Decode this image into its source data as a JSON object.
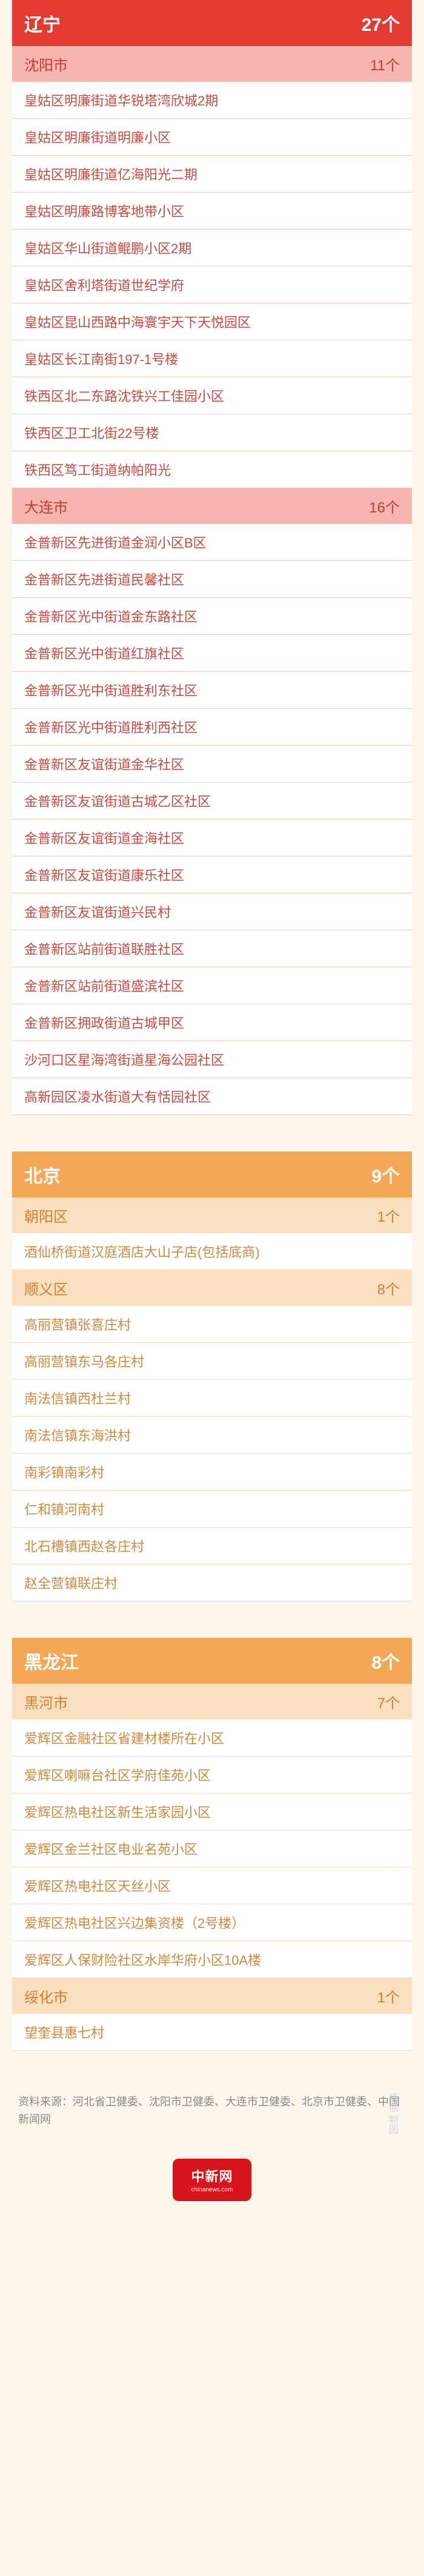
{
  "provinces": [
    {
      "name": "辽宁",
      "count": "27个",
      "header_bg": "#e33b32",
      "header_fg": "#ffffff",
      "city_bg": "#f7b6b0",
      "city_fg": "#c93a32",
      "row_fg": "#c94a40",
      "border_color": "#f2c8c3",
      "cities": [
        {
          "name": "沈阳市",
          "count": "11个",
          "locations": [
            "皇姑区明廉街道华锐塔湾欣城2期",
            "皇姑区明廉街道明廉小区",
            "皇姑区明廉街道亿海阳光二期",
            "皇姑区明廉路博客地带小区",
            "皇姑区华山街道鲲鹏小区2期",
            "皇姑区舍利塔街道世纪学府",
            "皇姑区昆山西路中海寰宇天下天悦园区",
            "皇姑区长江南街197-1号楼",
            "铁西区北二东路沈铁兴工佳园小区",
            "铁西区卫工北街22号楼",
            "铁西区笃工街道纳帕阳光"
          ]
        },
        {
          "name": "大连市",
          "count": "16个",
          "locations": [
            "金普新区先进街道金润小区B区",
            "金普新区先进街道民馨社区",
            "金普新区光中街道金东路社区",
            "金普新区光中街道红旗社区",
            "金普新区光中街道胜利东社区",
            "金普新区光中街道胜利西社区",
            "金普新区友谊街道金华社区",
            "金普新区友谊街道古城乙区社区",
            "金普新区友谊街道金海社区",
            "金普新区友谊街道康乐社区",
            "金普新区友谊街道兴民村",
            "金普新区站前街道联胜社区",
            "金普新区站前街道盛滨社区",
            "金普新区拥政街道古城甲区",
            "沙河口区星海湾街道星海公园社区",
            "高新园区凌水街道大有恬园社区"
          ]
        }
      ]
    },
    {
      "name": "北京",
      "count": "9个",
      "header_bg": "#f5a755",
      "header_fg": "#ffffff",
      "city_bg": "#fbe0c0",
      "city_fg": "#d08030",
      "row_fg": "#cf8a3e",
      "border_color": "#f3dcc0",
      "cities": [
        {
          "name": "朝阳区",
          "count": "1个",
          "locations": [
            "酒仙桥街道汉庭酒店大山子店(包括底商)"
          ]
        },
        {
          "name": "顺义区",
          "count": "8个",
          "locations": [
            "高丽营镇张喜庄村",
            "高丽营镇东马各庄村",
            "南法信镇西杜兰村",
            "南法信镇东海洪村",
            "南彩镇南彩村",
            "仁和镇河南村",
            "北石槽镇西赵各庄村",
            "赵全营镇联庄村"
          ]
        }
      ]
    },
    {
      "name": "黑龙江",
      "count": "8个",
      "header_bg": "#f5a755",
      "header_fg": "#ffffff",
      "city_bg": "#fbe0c0",
      "city_fg": "#d08030",
      "row_fg": "#cf8a3e",
      "border_color": "#f3dcc0",
      "cities": [
        {
          "name": "黑河市",
          "count": "7个",
          "locations": [
            "爱辉区金融社区省建材楼所在小区",
            "爱辉区喇嘛台社区学府佳苑小区",
            "爱辉区热电社区新生活家园小区",
            "爱辉区金兰社区电业名苑小区",
            "爱辉区热电社区天丝小区",
            "爱辉区热电社区兴边集资楼（2号楼）",
            "爱辉区人保财险社区水岸华府小区10A楼"
          ]
        },
        {
          "name": "绥化市",
          "count": "1个",
          "locations": [
            "望奎县惠七村"
          ]
        }
      ]
    }
  ],
  "source_label": "资料来源：",
  "source_text": "河北省卫健委、沈阳市卫健委、大连市卫健委、北京市卫健委、中国新闻网",
  "stamp_text": "杨丽   制图",
  "logo_main": "中新网",
  "logo_sub": "chinanews.com"
}
